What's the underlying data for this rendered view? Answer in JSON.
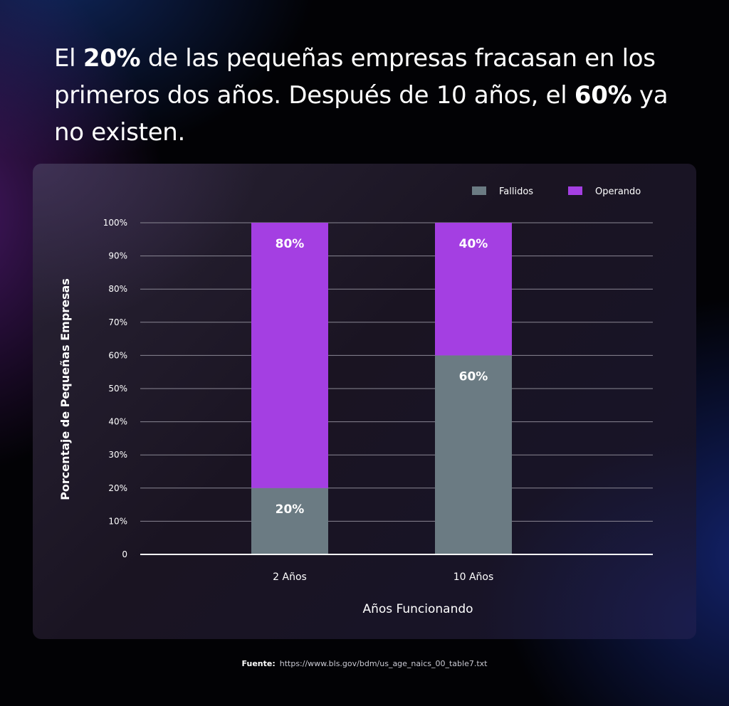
{
  "headline": {
    "part1": "El ",
    "bold1": "20%",
    "part2": " de las pequeñas empresas fracasan en los primeros dos años. Después de 10 años, el ",
    "bold2": "60%",
    "part3": " ya no existen."
  },
  "chart_data": {
    "type": "bar",
    "stacked": true,
    "categories": [
      "2 Años",
      "10 Años"
    ],
    "series": [
      {
        "name": "Fallidos",
        "values": [
          20,
          60
        ],
        "color": "#6b7b83"
      },
      {
        "name": "Operando",
        "values": [
          80,
          40
        ],
        "color": "#a43fe2"
      }
    ],
    "data_labels": [
      [
        "20%",
        "60%"
      ],
      [
        "80%",
        "40%"
      ]
    ],
    "xlabel": "Años Funcionando",
    "ylabel": "Porcentaje de Pequeñas Empresas",
    "yticks": [
      0,
      10,
      20,
      30,
      40,
      50,
      60,
      70,
      80,
      90,
      100
    ],
    "ytick_labels": [
      "0",
      "10%",
      "20%",
      "30%",
      "40%",
      "50%",
      "60%",
      "70%",
      "80%",
      "90%",
      "100%"
    ],
    "ylim": [
      0,
      100
    ],
    "grid": true,
    "legend": "top-right"
  },
  "source": {
    "label": "Fuente:",
    "url": "https://www.bls.gov/bdm/us_age_naics_00_table7.txt"
  },
  "colors": {
    "grid": "#8a8794",
    "axis": "#ffffff",
    "text": "#ffffff"
  }
}
